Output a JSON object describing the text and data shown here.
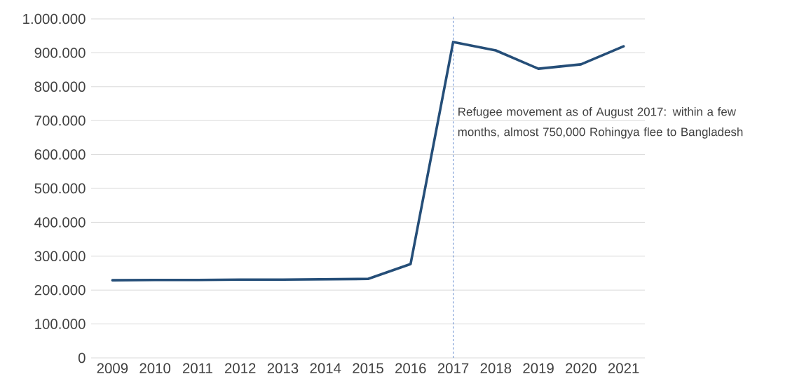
{
  "chart_data": {
    "type": "line",
    "x": [
      2009,
      2010,
      2011,
      2012,
      2013,
      2014,
      2015,
      2016,
      2017,
      2018,
      2019,
      2020,
      2021
    ],
    "series": [
      {
        "color": "#254e78",
        "values": [
          229000,
          230000,
          230000,
          231000,
          231000,
          232000,
          233000,
          277000,
          932000,
          907000,
          853000,
          866000,
          919000
        ]
      }
    ],
    "xlim": [
      2008.5,
      2021.5
    ],
    "xticks": [
      2009,
      2010,
      2011,
      2012,
      2013,
      2014,
      2015,
      2016,
      2017,
      2018,
      2019,
      2020,
      2021
    ],
    "ylim": [
      0,
      1000000
    ],
    "yticks": [
      {
        "value": 0,
        "label": "0"
      },
      {
        "value": 100000,
        "label": "100.000"
      },
      {
        "value": 200000,
        "label": "200.000"
      },
      {
        "value": 300000,
        "label": "300.000"
      },
      {
        "value": 400000,
        "label": "400.000"
      },
      {
        "value": 500000,
        "label": "500.000"
      },
      {
        "value": 600000,
        "label": "600.000"
      },
      {
        "value": 700000,
        "label": "700.000"
      },
      {
        "value": 800000,
        "label": "800.000"
      },
      {
        "value": 900000,
        "label": "900.000"
      },
      {
        "value": 1000000,
        "label": "1.000.000"
      }
    ],
    "grid": "y",
    "ref_lines": [
      {
        "axis": "x",
        "value": 2017,
        "color": "#4472c4",
        "line_style": "dashed",
        "label": "Refugee movement as of August 2017: within a few months, almost 750,000 Rohingya flee to Bangladesh"
      }
    ]
  }
}
